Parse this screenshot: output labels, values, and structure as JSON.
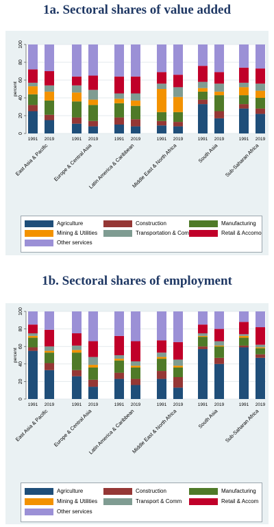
{
  "chart_data": [
    {
      "type": "bar",
      "title": "1a. Sectoral shares of value added",
      "ylabel": "percent",
      "ylim": [
        0,
        100
      ],
      "yticks": [
        0,
        20,
        40,
        60,
        80,
        100
      ],
      "regions": [
        "East Asia & Pacific",
        "Europe & Central Asia",
        "Latin America & Caribbean",
        "Middle East & North Africa",
        "South Asia",
        "Sub-Saharan Africa"
      ],
      "years": [
        "1991",
        "2019"
      ],
      "series": [
        {
          "name": "Agriculture",
          "color": "#1f4e79",
          "values": [
            [
              25,
              15
            ],
            [
              11,
              8
            ],
            [
              10,
              8
            ],
            [
              9,
              8
            ],
            [
              33,
              17
            ],
            [
              28,
              22
            ]
          ]
        },
        {
          "name": "Construction",
          "color": "#953735",
          "values": [
            [
              7,
              6
            ],
            [
              7,
              6
            ],
            [
              8,
              8
            ],
            [
              5,
              5
            ],
            [
              5,
              8
            ],
            [
              5,
              6
            ]
          ]
        },
        {
          "name": "Manufacturing",
          "color": "#4f7a28",
          "values": [
            [
              12,
              16
            ],
            [
              18,
              18
            ],
            [
              16,
              15
            ],
            [
              10,
              11
            ],
            [
              9,
              18
            ],
            [
              10,
              12
            ]
          ]
        },
        {
          "name": "Mining & Utilities",
          "color": "#f39200",
          "values": [
            [
              9,
              10
            ],
            [
              10,
              6
            ],
            [
              5,
              6
            ],
            [
              26,
              17
            ],
            [
              4,
              4
            ],
            [
              9,
              8
            ]
          ]
        },
        {
          "name": "Transportation & Comm",
          "color": "#7f9c92",
          "values": [
            [
              4,
              7
            ],
            [
              8,
              11
            ],
            [
              6,
              8
            ],
            [
              6,
              11
            ],
            [
              7,
              9
            ],
            [
              5,
              8
            ]
          ]
        },
        {
          "name": "Retail & Accomo",
          "color": "#c00029",
          "values": [
            [
              15,
              16
            ],
            [
              10,
              16
            ],
            [
              19,
              19
            ],
            [
              13,
              14
            ],
            [
              18,
              13
            ],
            [
              17,
              17
            ]
          ]
        },
        {
          "name": "Other services",
          "color": "#9b90d6",
          "values": [
            [
              28,
              30
            ],
            [
              36,
              35
            ],
            [
              36,
              36
            ],
            [
              31,
              34
            ],
            [
              24,
              31
            ],
            [
              26,
              27
            ]
          ]
        }
      ]
    },
    {
      "type": "bar",
      "title": "1b. Sectoral shares of employment",
      "ylabel": "percent",
      "ylim": [
        0,
        100
      ],
      "yticks": [
        0,
        20,
        40,
        60,
        80,
        100
      ],
      "regions": [
        "East Asia & Pacific",
        "Europe & Central Asia",
        "Latin America & Caribbean",
        "Middle East & North Africa",
        "South Asia",
        "Sub-Saharan Africa"
      ],
      "years": [
        "1991",
        "2019"
      ],
      "series": [
        {
          "name": "Agriculture",
          "color": "#1f4e79",
          "values": [
            [
              55,
              33
            ],
            [
              26,
              14
            ],
            [
              23,
              16
            ],
            [
              23,
              13
            ],
            [
              57,
              40
            ],
            [
              59,
              47
            ]
          ]
        },
        {
          "name": "Construction",
          "color": "#953735",
          "values": [
            [
              4,
              8
            ],
            [
              7,
              8
            ],
            [
              7,
              7
            ],
            [
              9,
              12
            ],
            [
              3,
              7
            ],
            [
              2,
              4
            ]
          ]
        },
        {
          "name": "Manufacturing",
          "color": "#4f7a28",
          "values": [
            [
              11,
              12
            ],
            [
              20,
              14
            ],
            [
              14,
              13
            ],
            [
              14,
              11
            ],
            [
              11,
              13
            ],
            [
              9,
              7
            ]
          ]
        },
        {
          "name": "Mining & Utilities",
          "color": "#f39200",
          "values": [
            [
              2,
              2
            ],
            [
              3,
              3
            ],
            [
              2,
              2
            ],
            [
              2,
              2
            ],
            [
              1,
              1
            ],
            [
              2,
              1
            ]
          ]
        },
        {
          "name": "Transport & Comm",
          "color": "#7f9c92",
          "values": [
            [
              3,
              5
            ],
            [
              5,
              9
            ],
            [
              4,
              5
            ],
            [
              5,
              7
            ],
            [
              3,
              5
            ],
            [
              2,
              3
            ]
          ]
        },
        {
          "name": "Retail & Accom",
          "color": "#c00029",
          "values": [
            [
              10,
              19
            ],
            [
              14,
              18
            ],
            [
              22,
              23
            ],
            [
              14,
              20
            ],
            [
              10,
              14
            ],
            [
              14,
              20
            ]
          ]
        },
        {
          "name": "Other services",
          "color": "#9b90d6",
          "values": [
            [
              15,
              21
            ],
            [
              25,
              34
            ],
            [
              28,
              34
            ],
            [
              33,
              35
            ],
            [
              15,
              20
            ],
            [
              12,
              18
            ]
          ]
        }
      ]
    }
  ]
}
